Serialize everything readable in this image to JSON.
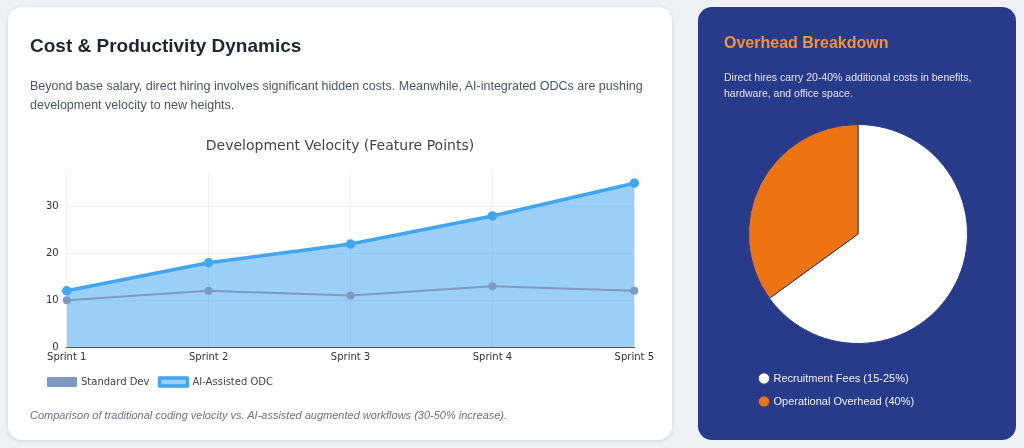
{
  "chart_data": [
    {
      "type": "line",
      "title": "Cost & Productivity Dynamics",
      "subtitle": "Beyond base salary, direct hiring involves significant hidden costs. Meanwhile, AI-integrated ODCs are pushing development velocity to new heights.",
      "annotations": [
        "Development Velocity (Feature Points)",
        "Comparison of traditional coding velocity vs. AI-assisted augmented workflows (30-50% increase)."
      ],
      "categories": [
        "Sprint 1",
        "Sprint 2",
        "Sprint 3",
        "Sprint 4",
        "Sprint 5"
      ],
      "series": [
        {
          "name": "Standard Dev",
          "type": "line",
          "color": "#7f99c4",
          "values": [
            10,
            12,
            11,
            13,
            12
          ]
        },
        {
          "name": "AI-Assisted ODC",
          "type": "area",
          "color": "#42a5f0",
          "values": [
            12,
            18,
            22,
            28,
            35
          ]
        }
      ],
      "ylim": [
        0,
        37.6
      ],
      "yticks": [
        0,
        10,
        20,
        30
      ],
      "grid": true,
      "marker": "circle",
      "legend": "bottom left"
    },
    {
      "type": "pie",
      "title": "Overhead Breakdown",
      "subtitle": "Direct hires carry 20-40% additional costs in benefits, hardware, and office space.",
      "categories": [
        "Recruitment Fees (15-25%)",
        "Operational Overhead (40%)"
      ],
      "values": [
        65,
        35
      ],
      "colors": [
        "#ffffff",
        "#ee7412"
      ],
      "legend": "bottom left"
    }
  ]
}
